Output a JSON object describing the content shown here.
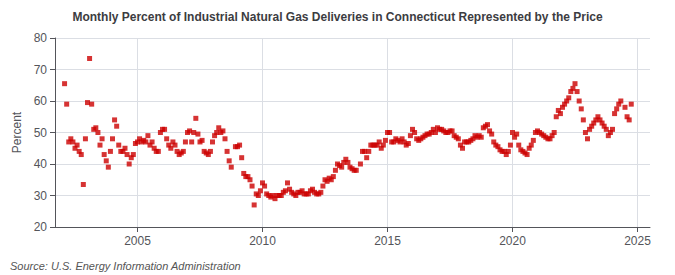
{
  "chart_data": {
    "type": "scatter",
    "title": "Monthly Percent of Industrial Natural Gas Deliveries in Connecticut Represented by the Price",
    "ylabel": "Percent",
    "annotations": [
      "Source: U.S. Energy Information Administration"
    ],
    "color": "#cc0000",
    "marker": "square",
    "grid": true,
    "xlim": [
      2001.7,
      2025.5
    ],
    "xticks": [
      2005,
      2010,
      2015,
      2020,
      2025
    ],
    "ylim": [
      20,
      80
    ],
    "yticks": [
      20,
      30,
      40,
      50,
      60,
      70,
      80
    ],
    "x": [
      2002.083,
      2002.167,
      2002.25,
      2002.333,
      2002.417,
      2002.5,
      2002.583,
      2002.667,
      2002.75,
      2002.833,
      2002.917,
      2003.0,
      2003.083,
      2003.167,
      2003.25,
      2003.333,
      2003.417,
      2003.5,
      2003.583,
      2003.667,
      2003.75,
      2003.833,
      2003.917,
      2004.0,
      2004.083,
      2004.167,
      2004.25,
      2004.333,
      2004.417,
      2004.5,
      2004.583,
      2004.667,
      2004.75,
      2004.833,
      2004.917,
      2005.0,
      2005.083,
      2005.167,
      2005.25,
      2005.333,
      2005.417,
      2005.5,
      2005.583,
      2005.667,
      2005.75,
      2005.833,
      2005.917,
      2006.0,
      2006.083,
      2006.167,
      2006.25,
      2006.333,
      2006.417,
      2006.5,
      2006.583,
      2006.667,
      2006.75,
      2006.833,
      2006.917,
      2007.0,
      2007.083,
      2007.167,
      2007.25,
      2007.333,
      2007.417,
      2007.5,
      2007.583,
      2007.667,
      2007.75,
      2007.833,
      2007.917,
      2008.0,
      2008.083,
      2008.167,
      2008.25,
      2008.333,
      2008.417,
      2008.5,
      2008.583,
      2008.667,
      2008.75,
      2008.917,
      2009.0,
      2009.083,
      2009.167,
      2009.25,
      2009.333,
      2009.417,
      2009.5,
      2009.583,
      2009.667,
      2009.75,
      2009.833,
      2009.917,
      2010.0,
      2010.083,
      2010.167,
      2010.25,
      2010.333,
      2010.417,
      2010.5,
      2010.583,
      2010.667,
      2010.75,
      2010.833,
      2010.917,
      2011.0,
      2011.083,
      2011.167,
      2011.25,
      2011.333,
      2011.417,
      2011.5,
      2011.583,
      2011.667,
      2011.75,
      2011.833,
      2011.917,
      2012.0,
      2012.083,
      2012.167,
      2012.25,
      2012.333,
      2012.417,
      2012.5,
      2012.583,
      2012.667,
      2012.75,
      2012.833,
      2012.917,
      2013.0,
      2013.083,
      2013.167,
      2013.25,
      2013.333,
      2013.417,
      2013.5,
      2013.583,
      2013.667,
      2013.75,
      2013.917,
      2014.0,
      2014.083,
      2014.167,
      2014.25,
      2014.333,
      2014.417,
      2014.5,
      2014.583,
      2014.667,
      2014.75,
      2014.833,
      2014.917,
      2015.0,
      2015.083,
      2015.167,
      2015.25,
      2015.333,
      2015.417,
      2015.5,
      2015.583,
      2015.667,
      2015.75,
      2015.833,
      2015.917,
      2016.0,
      2016.083,
      2016.167,
      2016.25,
      2016.333,
      2016.417,
      2016.5,
      2016.583,
      2016.667,
      2016.75,
      2016.833,
      2016.917,
      2017.0,
      2017.083,
      2017.167,
      2017.25,
      2017.333,
      2017.417,
      2017.5,
      2017.583,
      2017.667,
      2017.75,
      2017.833,
      2017.917,
      2018.0,
      2018.083,
      2018.167,
      2018.25,
      2018.333,
      2018.417,
      2018.5,
      2018.583,
      2018.667,
      2018.75,
      2018.833,
      2018.917,
      2019.0,
      2019.083,
      2019.167,
      2019.25,
      2019.333,
      2019.417,
      2019.5,
      2019.583,
      2019.667,
      2019.75,
      2019.833,
      2019.917,
      2020.0,
      2020.083,
      2020.167,
      2020.25,
      2020.333,
      2020.417,
      2020.5,
      2020.583,
      2020.667,
      2020.75,
      2020.833,
      2020.917,
      2021.0,
      2021.083,
      2021.167,
      2021.25,
      2021.333,
      2021.417,
      2021.5,
      2021.583,
      2021.667,
      2021.75,
      2021.833,
      2021.917,
      2022.0,
      2022.083,
      2022.167,
      2022.25,
      2022.333,
      2022.417,
      2022.5,
      2022.583,
      2022.667,
      2022.75,
      2022.833,
      2022.917,
      2023.0,
      2023.083,
      2023.167,
      2023.25,
      2023.333,
      2023.417,
      2023.5,
      2023.583,
      2023.667,
      2023.75,
      2023.833,
      2023.917,
      2024.0,
      2024.083,
      2024.167,
      2024.25,
      2024.333,
      2024.5,
      2024.583,
      2024.667,
      2024.75
    ],
    "values": [
      65.5,
      59.0,
      47.0,
      48.0,
      47.0,
      45.0,
      46.0,
      44.0,
      43.0,
      33.5,
      48.0,
      59.5,
      73.5,
      59.0,
      51.0,
      51.5,
      50.0,
      46.0,
      48.0,
      43.0,
      41.0,
      39.0,
      44.0,
      48.0,
      54.0,
      52.0,
      46.0,
      44.0,
      44.0,
      45.0,
      43.0,
      40.0,
      42.0,
      43.0,
      46.5,
      47.0,
      48.0,
      47.0,
      47.5,
      47.0,
      49.0,
      46.0,
      47.0,
      45.0,
      44.0,
      44.0,
      50.0,
      51.0,
      51.0,
      48.0,
      46.0,
      45.0,
      47.0,
      46.0,
      44.0,
      43.0,
      43.5,
      44.0,
      47.0,
      50.0,
      50.5,
      47.0,
      50.0,
      54.5,
      49.5,
      47.0,
      47.5,
      44.0,
      43.5,
      43.0,
      44.0,
      47.0,
      49.0,
      50.0,
      51.5,
      50.0,
      50.5,
      48.0,
      44.0,
      41.0,
      39.0,
      45.5,
      45.5,
      46.0,
      42.0,
      37.0,
      36.0,
      36.0,
      35.0,
      33.0,
      27.0,
      30.5,
      30.0,
      31.5,
      34.0,
      33.0,
      30.5,
      30.0,
      29.5,
      30.0,
      29.0,
      30.0,
      30.0,
      30.0,
      31.0,
      31.5,
      34.0,
      32.0,
      31.0,
      30.5,
      30.0,
      31.0,
      31.0,
      31.5,
      30.5,
      30.5,
      30.5,
      31.5,
      32.0,
      31.0,
      30.5,
      30.5,
      31.0,
      33.0,
      35.0,
      34.5,
      35.5,
      35.0,
      36.0,
      38.0,
      40.0,
      39.5,
      39.0,
      40.5,
      41.5,
      40.5,
      39.0,
      38.5,
      38.0,
      38.0,
      40.0,
      44.0,
      44.0,
      42.0,
      44.0,
      46.0,
      46.0,
      46.0,
      46.0,
      47.0,
      45.0,
      46.0,
      47.5,
      50.0,
      50.0,
      47.0,
      47.0,
      48.0,
      47.5,
      47.0,
      48.0,
      47.0,
      46.0,
      46.5,
      49.0,
      51.0,
      50.0,
      48.0,
      47.5,
      48.0,
      48.5,
      49.0,
      49.5,
      49.5,
      50.0,
      51.0,
      50.0,
      51.5,
      51.0,
      51.0,
      50.5,
      50.0,
      50.0,
      50.5,
      50.5,
      49.0,
      48.5,
      48.0,
      46.0,
      45.0,
      47.0,
      47.0,
      47.0,
      47.5,
      48.0,
      49.0,
      48.5,
      49.0,
      48.5,
      51.5,
      52.0,
      52.5,
      50.5,
      49.5,
      47.0,
      46.0,
      45.5,
      44.5,
      44.0,
      44.0,
      43.0,
      44.0,
      46.0,
      50.0,
      48.5,
      49.5,
      46.0,
      44.5,
      44.0,
      43.5,
      43.0,
      45.0,
      46.0,
      47.5,
      50.0,
      50.5,
      50.0,
      49.5,
      49.0,
      48.5,
      48.0,
      48.0,
      49.0,
      50.0,
      55.0,
      57.0,
      56.0,
      58.0,
      59.0,
      60.0,
      61.0,
      63.0,
      64.0,
      65.5,
      63.0,
      60.0,
      57.5,
      54.0,
      50.0,
      48.0,
      51.0,
      52.0,
      53.0,
      54.0,
      55.0,
      54.0,
      53.0,
      52.0,
      51.0,
      49.0,
      50.0,
      51.0,
      56.0,
      57.5,
      59.0,
      60.0,
      58.0,
      55.0,
      54.0,
      59.0
    ]
  }
}
